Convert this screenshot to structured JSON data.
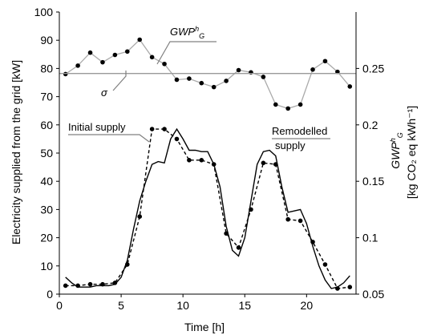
{
  "chart_data": {
    "type": "line",
    "xlabel": "Time [h]",
    "ylabel_left": "Electricity supplied from the grid  [kW]",
    "ylabel_right_main": "GWP",
    "ylabel_right_sup": "h",
    "ylabel_right_sub": "G",
    "ylabel_right_units": "[kg CO₂ eq kWh⁻¹]",
    "xlim": [
      0,
      24
    ],
    "ylim_left": [
      0,
      100
    ],
    "ylim_right": [
      0.05,
      0.3
    ],
    "x_ticks": [
      0,
      5,
      10,
      15,
      20
    ],
    "y_left_ticks": [
      0,
      10,
      20,
      30,
      40,
      50,
      60,
      70,
      80,
      90,
      100
    ],
    "y_right_ticks": [
      0.05,
      0.1,
      0.15,
      0.2,
      0.25
    ],
    "annotations": {
      "gwp_main": "GWP",
      "gwp_sup": "h",
      "gwp_sub": "G",
      "sigma": "σ",
      "initial": "Initial supply",
      "remodelled_line1": "Remodelled",
      "remodelled_line2": "supply"
    },
    "colors": {
      "gwp": "#aaaaaa",
      "sigma": "#9a9a9a",
      "supply": "#000000"
    },
    "series": [
      {
        "name": "Initial supply",
        "axis": "left",
        "style": "dashed-markers",
        "x": [
          0.5,
          1.5,
          2.5,
          3.5,
          4.5,
          5.5,
          6.5,
          7.5,
          8.5,
          9.5,
          10.5,
          11.5,
          12.5,
          13.5,
          14.5,
          15.5,
          16.5,
          17.5,
          18.5,
          19.5,
          20.5,
          21.5,
          22.5,
          23.5
        ],
        "y": [
          3,
          3,
          3.5,
          3.5,
          4,
          10.5,
          27.5,
          58.5,
          58.5,
          55,
          47.5,
          47.5,
          46,
          21.5,
          16.5,
          30,
          46.5,
          46,
          26.5,
          26,
          18.5,
          10.5,
          2,
          2.5
        ]
      },
      {
        "name": "Remodelled supply",
        "axis": "left",
        "style": "solid",
        "x": [
          0.5,
          1,
          1.5,
          2,
          2.5,
          3,
          3.5,
          4,
          4.5,
          5,
          5.5,
          6,
          6.5,
          7,
          7.5,
          8,
          8.5,
          9,
          9.5,
          10,
          10.5,
          11,
          11.5,
          12,
          12.5,
          13,
          13.5,
          14,
          14.5,
          15,
          15.5,
          16,
          16.5,
          17,
          17.5,
          18,
          18.5,
          19,
          19.5,
          20,
          20.5,
          21,
          21.5,
          22,
          22.5,
          23,
          23.5
        ],
        "y": [
          6,
          4,
          2.5,
          2.5,
          2.5,
          3,
          3,
          3,
          3.5,
          6,
          12,
          23,
          33,
          40,
          46,
          47,
          46.5,
          55,
          58.5,
          55,
          51,
          51,
          50.5,
          50.5,
          46,
          38,
          24,
          15.5,
          13.5,
          20,
          33,
          46,
          50.5,
          51,
          49,
          38,
          29,
          29.5,
          30,
          25,
          17,
          10,
          5,
          2,
          2.5,
          4,
          6.5
        ]
      },
      {
        "name": "GWP",
        "axis": "right",
        "style": "markers-line",
        "x": [
          0.5,
          1.5,
          2.5,
          3.5,
          4.5,
          5.5,
          6.5,
          7.5,
          8.5,
          9.5,
          10.5,
          11.5,
          12.5,
          13.5,
          14.5,
          15.5,
          16.5,
          17.5,
          18.5,
          19.5,
          20.5,
          21.5,
          22.5,
          23.5
        ],
        "y": [
          0.245,
          0.2525,
          0.264,
          0.2555,
          0.262,
          0.265,
          0.2755,
          0.26,
          0.254,
          0.24,
          0.241,
          0.237,
          0.2335,
          0.239,
          0.2485,
          0.2465,
          0.2425,
          0.218,
          0.2145,
          0.218,
          0.249,
          0.2565,
          0.247,
          0.234
        ]
      },
      {
        "name": "σ",
        "axis": "right",
        "style": "solid-thin",
        "x": [
          0,
          24
        ],
        "y": [
          0.2455,
          0.2455
        ]
      }
    ]
  }
}
